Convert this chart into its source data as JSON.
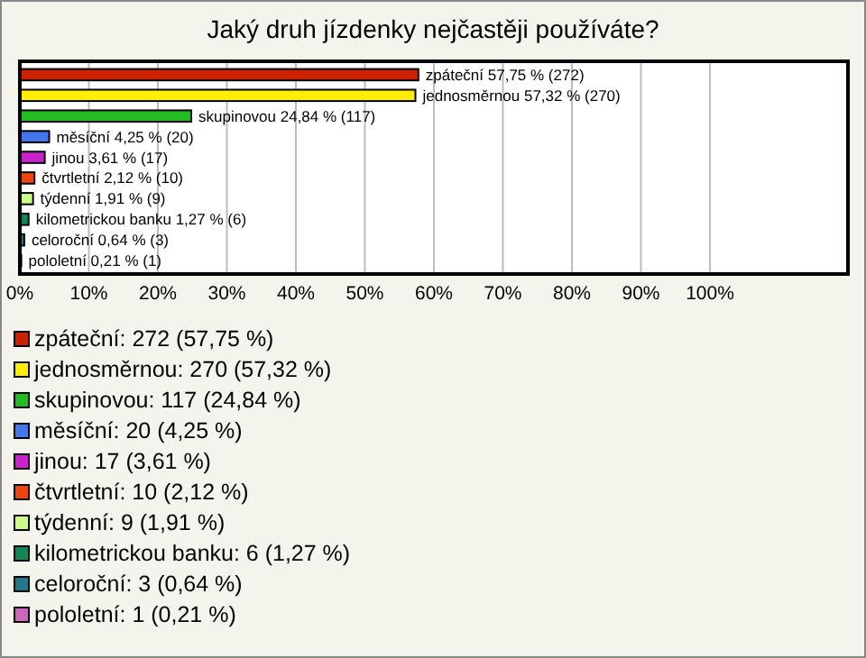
{
  "chart_data": {
    "type": "bar",
    "orientation": "horizontal",
    "title": "Jaký druh jízdenky nejčastěji používáte?",
    "categories": [
      null,
      null,
      null,
      null,
      null,
      null,
      null,
      null,
      null,
      null
    ],
    "values": [
      57.75,
      57.32,
      24.84,
      4.25,
      3.61,
      2.12,
      1.91,
      1.27,
      0.64,
      0.21
    ],
    "colors": [
      "#cc2200",
      "#ffee00",
      "#22bb22",
      "#4477ee",
      "#cc22cc",
      "#ee4411",
      "#ccff88",
      "#118855",
      "#227788",
      "#cc66bb"
    ],
    "value_labels": [
      "zpáteční 57,75 % (272)",
      "jednosměrnou 57,32 % (270)",
      "skupinovou 24,84 % (117)",
      "měsíční 4,25 % (20)",
      "jinou 3,61 % (17)",
      "čtvrtletní 2,12 % (10)",
      "týdenní 1,91 % (9)",
      "kilometrickou banku 1,27 % (6)",
      "celoroční 0,64 % (3)",
      "pololetní 0,21 % (1)"
    ],
    "xlim": [
      0,
      120
    ],
    "xticks": [
      {
        "value": 0,
        "label": "0%"
      },
      {
        "value": 10,
        "label": "10%"
      },
      {
        "value": 20,
        "label": "20%"
      },
      {
        "value": 30,
        "label": "30%"
      },
      {
        "value": 40,
        "label": "40%"
      },
      {
        "value": 50,
        "label": "50%"
      },
      {
        "value": 60,
        "label": "60%"
      },
      {
        "value": 70,
        "label": "70%"
      },
      {
        "value": 80,
        "label": "80%"
      },
      {
        "value": 90,
        "label": "90%"
      },
      {
        "value": 100,
        "label": "100%"
      }
    ],
    "grid": "x",
    "tick_labels": "x",
    "annotations": [
      "zpáteční: 272 (57,75 %)",
      "jednosměrnou: 270 (57,32 %)",
      "skupinovou: 117 (24,84 %)",
      "měsíční: 20 (4,25 %)",
      "jinou: 17 (3,61 %)",
      "čtvrtletní: 10 (2,12 %)",
      "týdenní: 9 (1,91 %)",
      "kilometrickou banku: 6 (1,27 %)",
      "celoroční: 3 (0,64 %)",
      "pololetní: 1 (0,21 %)"
    ]
  }
}
